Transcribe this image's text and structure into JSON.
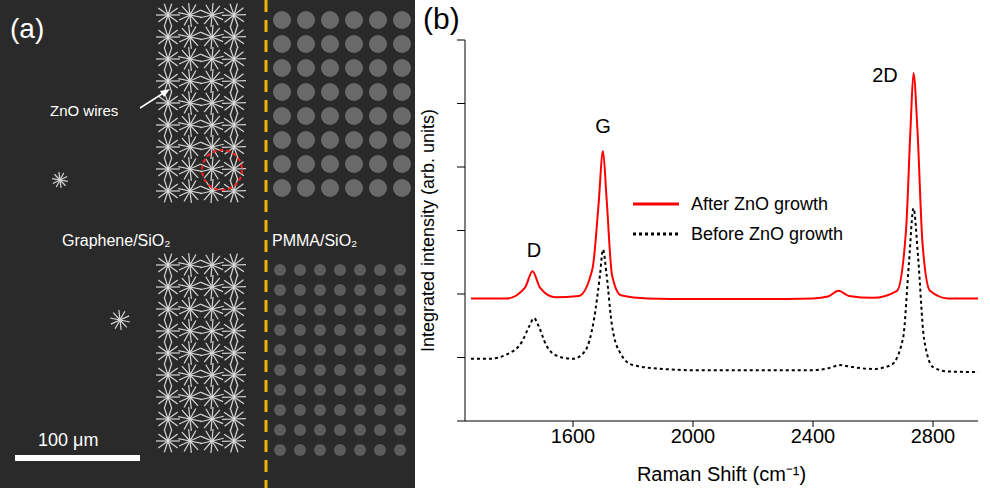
{
  "panel_a": {
    "label": "(a)",
    "annotation": "ZnO wires",
    "left_region": "Graphene/SiO₂",
    "right_region": "PMMA/SiO₂",
    "scale_bar": "100 μm"
  },
  "chart_data": {
    "type": "line",
    "panel_label": "(b)",
    "x_label": "Raman Shift (cm⁻¹)",
    "y_label": "Integrated intensity (arb. units)",
    "xlim": [
      1240,
      2950
    ],
    "xticks": [
      1600,
      2000,
      2400,
      2800
    ],
    "ylim": [
      0,
      6
    ],
    "yticks": [
      0,
      1,
      2,
      3,
      4,
      5,
      6
    ],
    "tick_labels": "x",
    "grid": false,
    "legend": "center",
    "annotations": [
      {
        "text": "D",
        "x": 1470,
        "y": 2.7
      },
      {
        "text": "G",
        "x": 1700,
        "y": 4.65
      },
      {
        "text": "2D",
        "x": 2640,
        "y": 5.45
      }
    ],
    "series": [
      {
        "name": "After ZnO growth",
        "color": "#ff0000",
        "line_style": "solid",
        "x": [
          1260,
          1380,
          1440,
          1465,
          1490,
          1540,
          1620,
          1665,
          1685,
          1700,
          1712,
          1730,
          1760,
          1850,
          2000,
          2200,
          2400,
          2450,
          2485,
          2520,
          2600,
          2680,
          2710,
          2725,
          2735,
          2748,
          2765,
          2790,
          2850,
          2950
        ],
        "values": [
          1.93,
          1.93,
          2.1,
          2.36,
          2.1,
          1.95,
          1.97,
          2.4,
          3.4,
          4.25,
          3.5,
          2.3,
          1.98,
          1.93,
          1.92,
          1.92,
          1.93,
          1.96,
          2.05,
          1.97,
          1.94,
          2.05,
          3.0,
          4.6,
          5.48,
          4.6,
          2.8,
          2.05,
          1.93,
          1.93
        ]
      },
      {
        "name": "Before ZnO growth",
        "color": "#000000",
        "line_style": "dotted",
        "x": [
          1260,
          1320,
          1380,
          1430,
          1455,
          1470,
          1485,
          1510,
          1550,
          1600,
          1640,
          1670,
          1690,
          1700,
          1712,
          1730,
          1760,
          1800,
          1900,
          2000,
          2100,
          2200,
          2300,
          2400,
          2450,
          2490,
          2530,
          2600,
          2660,
          2700,
          2720,
          2735,
          2750,
          2770,
          2800,
          2850,
          2950
        ],
        "values": [
          0.98,
          0.98,
          1.05,
          1.25,
          1.5,
          1.62,
          1.5,
          1.2,
          1.02,
          0.98,
          1.1,
          1.6,
          2.3,
          2.7,
          2.3,
          1.5,
          1.05,
          0.88,
          0.82,
          0.8,
          0.8,
          0.8,
          0.8,
          0.8,
          0.83,
          0.88,
          0.85,
          0.82,
          0.88,
          1.3,
          2.5,
          3.35,
          2.6,
          1.3,
          0.85,
          0.78,
          0.77
        ]
      }
    ]
  }
}
